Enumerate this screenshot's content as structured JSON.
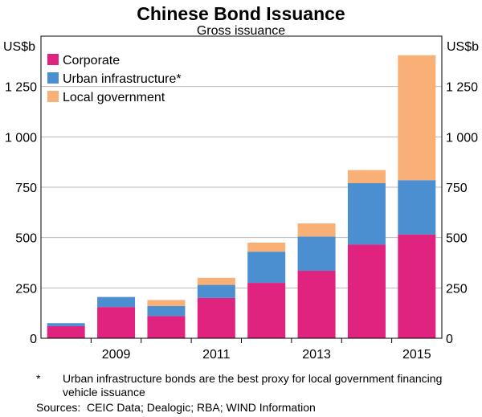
{
  "chart_data": {
    "type": "bar",
    "stacked": true,
    "title": "Chinese Bond Issuance",
    "subtitle": "Gross issuance",
    "ylabel": "US$b",
    "ylabel_right": "US$b",
    "ylim": [
      0,
      1500
    ],
    "yticks": [
      0,
      250,
      500,
      750,
      1000,
      1250
    ],
    "ytick_labels": [
      "0",
      "250",
      "500",
      "750",
      "1 000",
      "1 250"
    ],
    "categories": [
      "2008",
      "2009",
      "2010",
      "2011",
      "2012",
      "2013",
      "2014",
      "2015"
    ],
    "xtick_labels": [
      "",
      "2009",
      "",
      "2011",
      "",
      "2013",
      "",
      "2015"
    ],
    "series": [
      {
        "name": "Corporate",
        "color": "#e0237e",
        "values": [
          60,
          155,
          110,
          200,
          275,
          335,
          465,
          515
        ]
      },
      {
        "name": "Urban infrastructure*",
        "color": "#4c8fd0",
        "values": [
          15,
          50,
          50,
          65,
          155,
          170,
          305,
          270
        ]
      },
      {
        "name": "Local government",
        "color": "#f9b076",
        "values": [
          0,
          0,
          30,
          35,
          45,
          65,
          65,
          620
        ]
      }
    ],
    "grid": true,
    "legend": "top-left"
  },
  "footnote": {
    "marker": "*",
    "text": "Urban infrastructure bonds are the best proxy for local government financing vehicle issuance"
  },
  "sources": {
    "label": "Sources:",
    "text": "CEIC Data; Dealogic; RBA; WIND Information"
  }
}
